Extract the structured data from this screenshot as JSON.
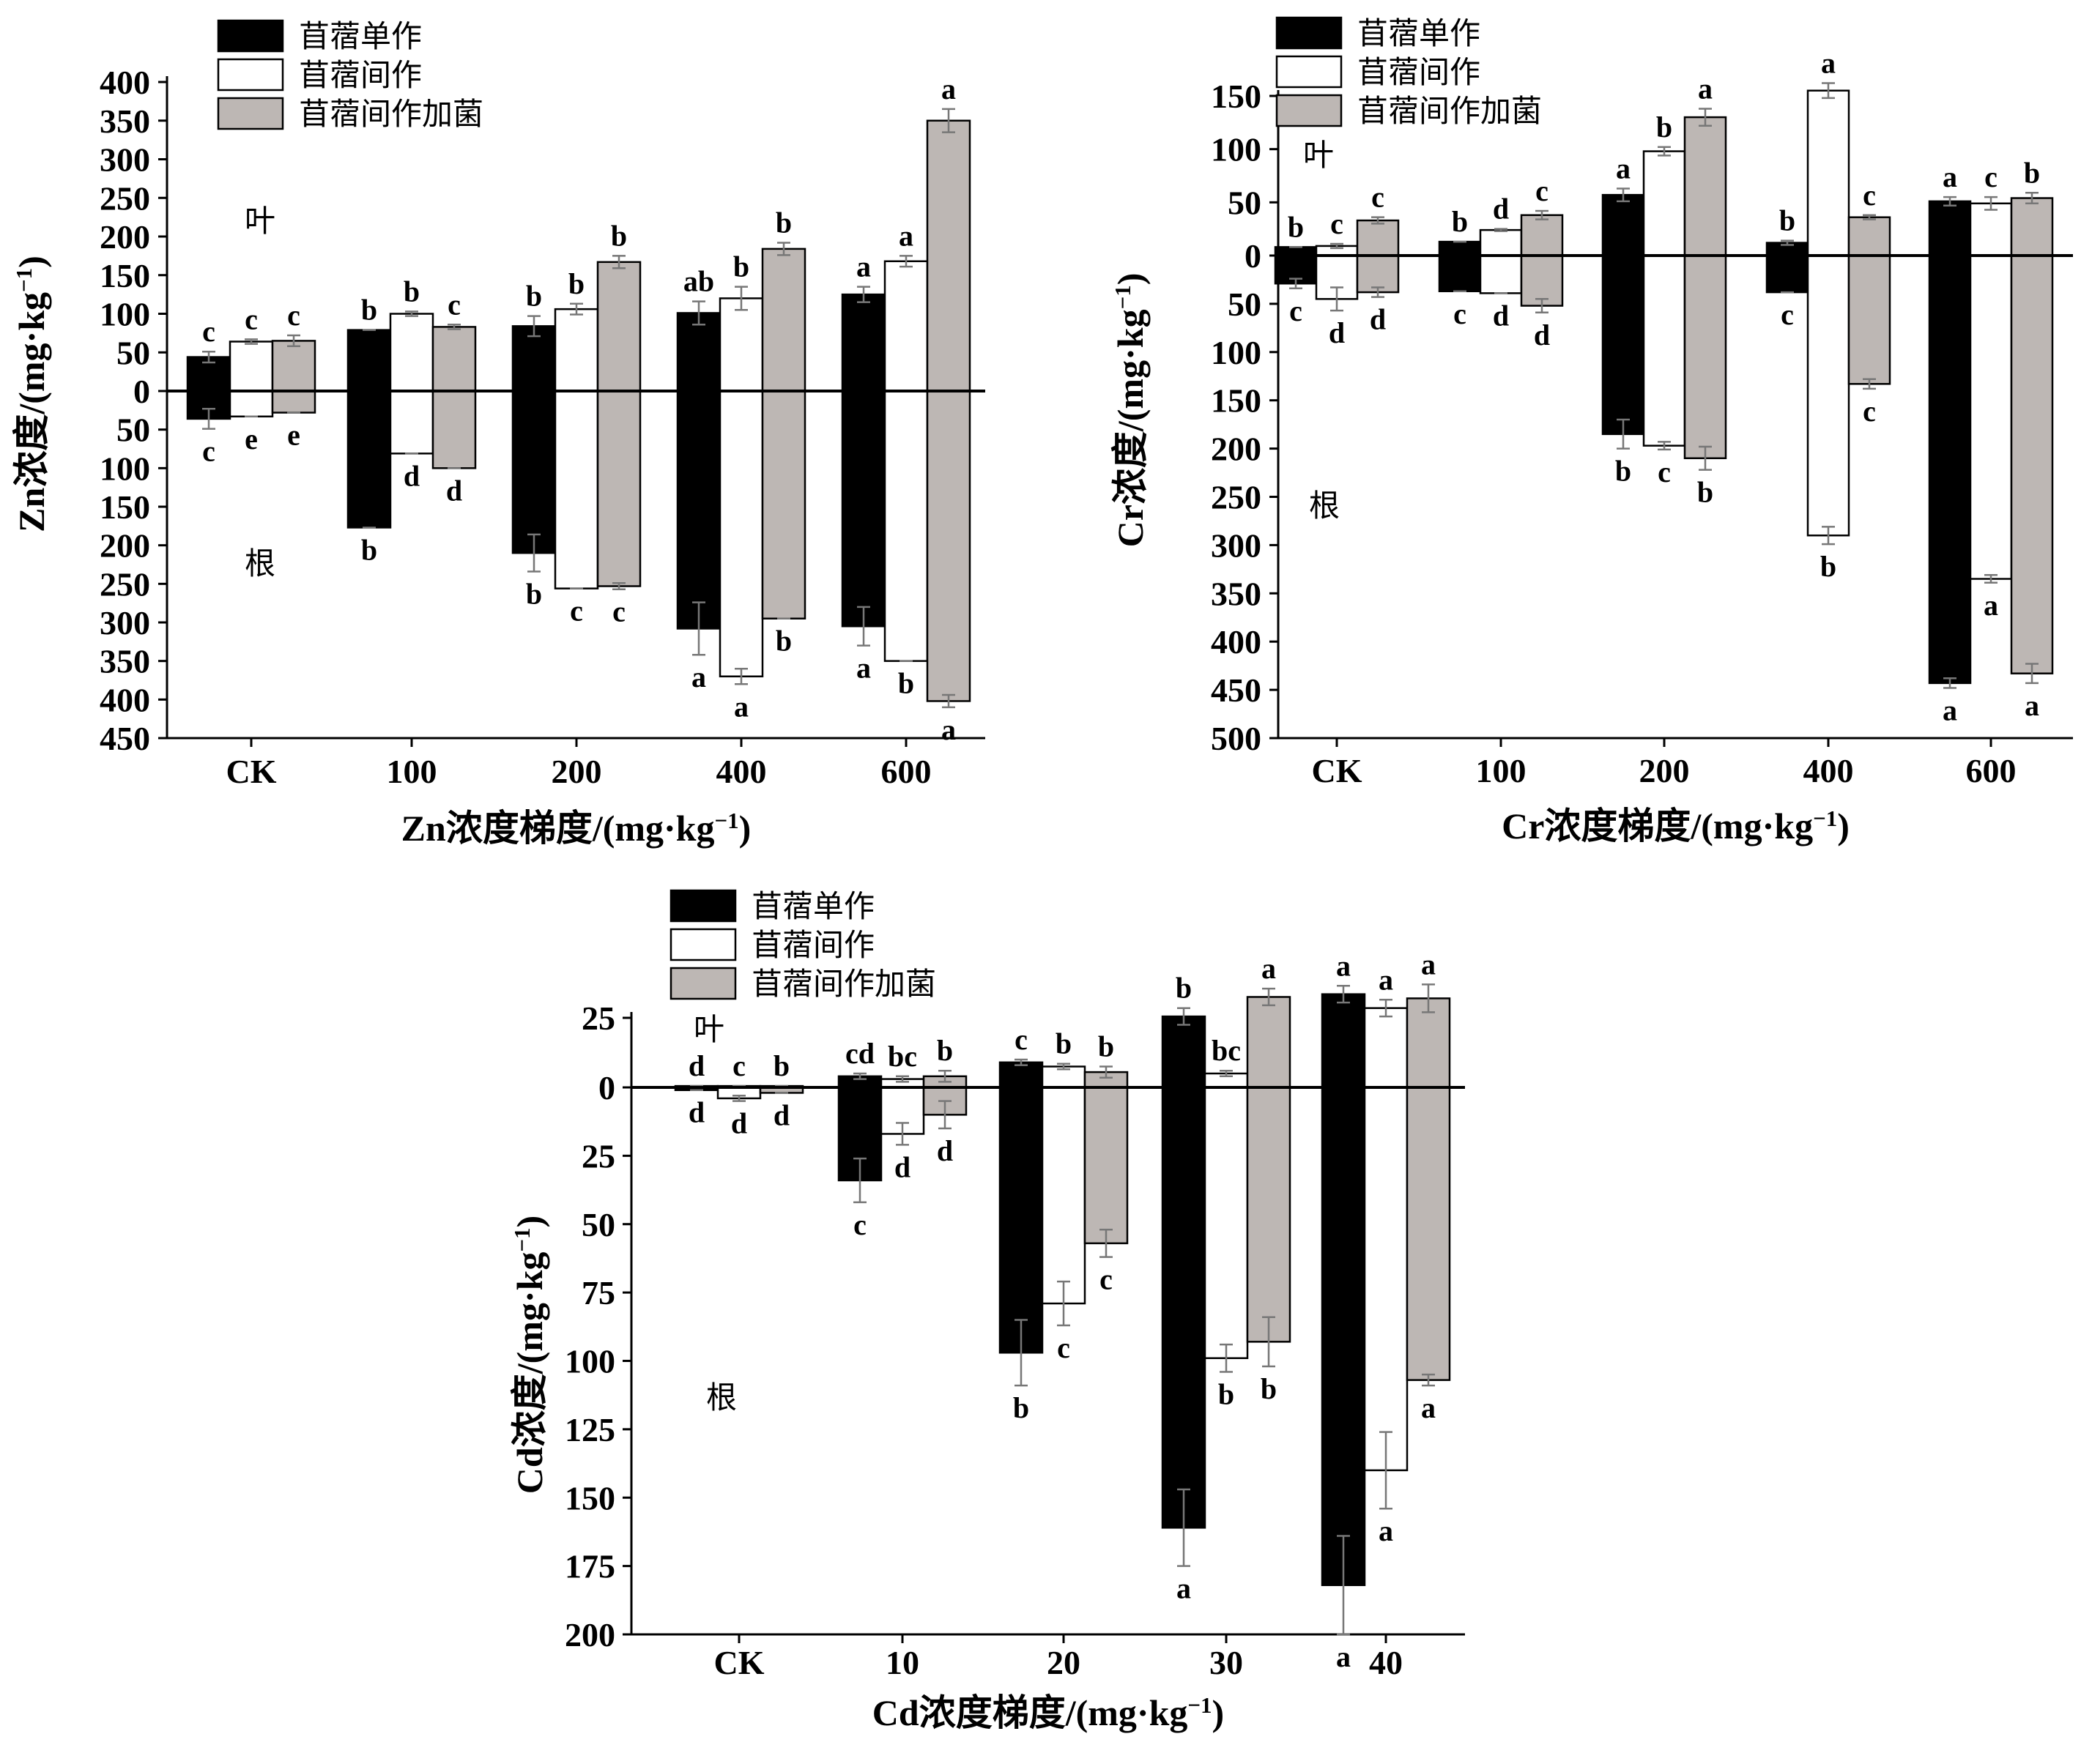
{
  "colors": {
    "black": "#000000",
    "white": "#ffffff",
    "gray": "#bdb7b4",
    "error_bar": "#777777"
  },
  "chart_data": [
    {
      "type": "bar",
      "id": "zn",
      "ylabel": "Zn浓度/(mg·kg",
      "ylabel_sup": "−1",
      "ylabel_close": ")",
      "xlabel": "Zn浓度梯度/(mg·kg",
      "xlabel_sup": "−1",
      "xlabel_close": ")",
      "categories": [
        "CK",
        "100",
        "200",
        "400",
        "600"
      ],
      "leaf_label": "叶",
      "root_label": "根",
      "leaf_range": [
        0,
        400
      ],
      "root_range": [
        0,
        450
      ],
      "ticks_leaf": [
        "400",
        "350",
        "300",
        "250",
        "200",
        "150",
        "100",
        "50"
      ],
      "ticks_zero": "0",
      "ticks_root": [
        "50",
        "100",
        "150",
        "200",
        "250",
        "300",
        "350",
        "400",
        "450"
      ],
      "legend": [
        "苜蓿单作",
        "苜蓿间作",
        "苜蓿间作加菌"
      ],
      "series": [
        {
          "name": "苜蓿单作",
          "leaf": [
            44,
            79,
            84,
            101,
            125
          ],
          "leaf_err": [
            7,
            0,
            13,
            15,
            10
          ],
          "leaf_sig": [
            "c",
            "b",
            "b",
            "ab",
            "a"
          ],
          "root": [
            36,
            177,
            210,
            308,
            305
          ],
          "root_err": [
            13,
            0,
            24,
            34,
            25
          ],
          "root_sig": [
            "c",
            "b",
            "b",
            "a",
            "a"
          ]
        },
        {
          "name": "苜蓿间作",
          "leaf": [
            64,
            100,
            106,
            120,
            168
          ],
          "leaf_err": [
            3,
            3,
            7,
            15,
            7
          ],
          "leaf_sig": [
            "c",
            "b",
            "b",
            "b",
            "a"
          ],
          "root": [
            33,
            81,
            256,
            370,
            350
          ],
          "root_err": [
            0,
            0,
            0,
            10,
            0
          ],
          "root_sig": [
            "e",
            "d",
            "c",
            "a",
            "b"
          ]
        },
        {
          "name": "苜蓿间作加菌",
          "leaf": [
            65,
            83,
            167,
            184,
            350
          ],
          "leaf_err": [
            7,
            3,
            8,
            8,
            15
          ],
          "leaf_sig": [
            "c",
            "c",
            "b",
            "b",
            "a"
          ],
          "root": [
            28,
            100,
            253,
            295,
            402
          ],
          "root_err": [
            0,
            0,
            4,
            0,
            8
          ],
          "root_sig": [
            "e",
            "d",
            "c",
            "b",
            "a"
          ]
        }
      ]
    },
    {
      "type": "bar",
      "id": "cr",
      "ylabel": "Cr浓度/(mg·kg",
      "ylabel_sup": "−1",
      "ylabel_close": ")",
      "xlabel": "Cr浓度梯度/(mg·kg",
      "xlabel_sup": "−1",
      "xlabel_close": ")",
      "categories": [
        "CK",
        "100",
        "200",
        "400",
        "600"
      ],
      "leaf_label": "叶",
      "root_label": "根",
      "leaf_range": [
        0,
        150
      ],
      "root_range": [
        0,
        500
      ],
      "ticks_leaf": [
        "150",
        "100",
        "50"
      ],
      "ticks_zero": "0",
      "ticks_root": [
        "50",
        "100",
        "150",
        "200",
        "250",
        "300",
        "350",
        "400",
        "450",
        "500"
      ],
      "legend": [
        "苜蓿单作",
        "苜蓿间作",
        "苜蓿间作加菌"
      ],
      "series": [
        {
          "name": "苜蓿单作",
          "leaf": [
            8,
            13,
            57,
            12,
            51
          ],
          "leaf_err": [
            0,
            0,
            6,
            2,
            4
          ],
          "leaf_sig": [
            "b",
            "b",
            "a",
            "b",
            "a"
          ],
          "root": [
            29,
            37,
            185,
            38,
            443
          ],
          "root_err": [
            5,
            0,
            15,
            0,
            5
          ],
          "root_sig": [
            "c",
            "c",
            "b",
            "c",
            "a"
          ]
        },
        {
          "name": "苜蓿间作",
          "leaf": [
            9,
            24,
            98,
            155,
            49
          ],
          "leaf_err": [
            2,
            1,
            4,
            7,
            6
          ],
          "leaf_sig": [
            "c",
            "d",
            "b",
            "a",
            "c"
          ],
          "root": [
            45,
            39,
            197,
            290,
            335
          ],
          "root_err": [
            12,
            0,
            4,
            9,
            4
          ],
          "root_sig": [
            "d",
            "d",
            "c",
            "b",
            "a"
          ]
        },
        {
          "name": "苜蓿间作加菌",
          "leaf": [
            33,
            38,
            130,
            36,
            54
          ],
          "leaf_err": [
            3,
            4,
            8,
            2,
            5
          ],
          "leaf_sig": [
            "c",
            "c",
            "a",
            "c",
            "b"
          ],
          "root": [
            38,
            52,
            210,
            133,
            433
          ],
          "root_err": [
            5,
            7,
            12,
            5,
            10
          ],
          "root_sig": [
            "d",
            "d",
            "b",
            "c",
            "a"
          ]
        }
      ]
    },
    {
      "type": "bar",
      "id": "cd",
      "ylabel": "Cd浓度/(mg·kg",
      "ylabel_sup": "−1",
      "ylabel_close": ")",
      "xlabel": "Cd浓度梯度/(mg·kg",
      "xlabel_sup": "−1",
      "xlabel_close": ")",
      "categories": [
        "CK",
        "10",
        "20",
        "30",
        "40"
      ],
      "leaf_label": "叶",
      "root_label": "根",
      "leaf_range": [
        0,
        25
      ],
      "root_range": [
        0,
        200
      ],
      "ticks_leaf": [
        "25"
      ],
      "ticks_zero": "0",
      "ticks_root": [
        "25",
        "50",
        "75",
        "100",
        "125",
        "150",
        "175",
        "200"
      ],
      "legend": [
        "苜蓿单作",
        "苜蓿间作",
        "苜蓿间作加菌"
      ],
      "series": [
        {
          "name": "苜蓿单作",
          "leaf": [
            0.5,
            4,
            9,
            25.5,
            33.5
          ],
          "leaf_err": [
            0,
            1,
            1,
            3,
            3
          ],
          "leaf_sig": [
            "d",
            "cd",
            "c",
            "b",
            "a"
          ],
          "root": [
            1,
            34,
            97,
            161,
            182
          ],
          "root_err": [
            0,
            8,
            12,
            14,
            18
          ],
          "root_sig": [
            "d",
            "c",
            "b",
            "a",
            "a"
          ]
        },
        {
          "name": "苜蓿间作",
          "leaf": [
            0.5,
            3,
            7.5,
            5,
            28.5
          ],
          "leaf_err": [
            0,
            1,
            1,
            1,
            3
          ],
          "leaf_sig": [
            "c",
            "bc",
            "b",
            "bc",
            "a"
          ],
          "root": [
            4,
            17,
            79,
            99,
            140
          ],
          "root_err": [
            1,
            4,
            8,
            5,
            14
          ],
          "root_sig": [
            "d",
            "d",
            "c",
            "b",
            "a"
          ]
        },
        {
          "name": "苜蓿间作加菌",
          "leaf": [
            0.5,
            4,
            5.5,
            32.5,
            32
          ],
          "leaf_err": [
            0,
            2,
            2,
            3,
            5
          ],
          "leaf_sig": [
            "b",
            "b",
            "b",
            "a",
            "a"
          ],
          "root": [
            2,
            10,
            57,
            93,
            107
          ],
          "root_err": [
            0,
            5,
            5,
            9,
            2
          ],
          "root_sig": [
            "d",
            "d",
            "c",
            "b",
            "a"
          ]
        }
      ]
    }
  ]
}
